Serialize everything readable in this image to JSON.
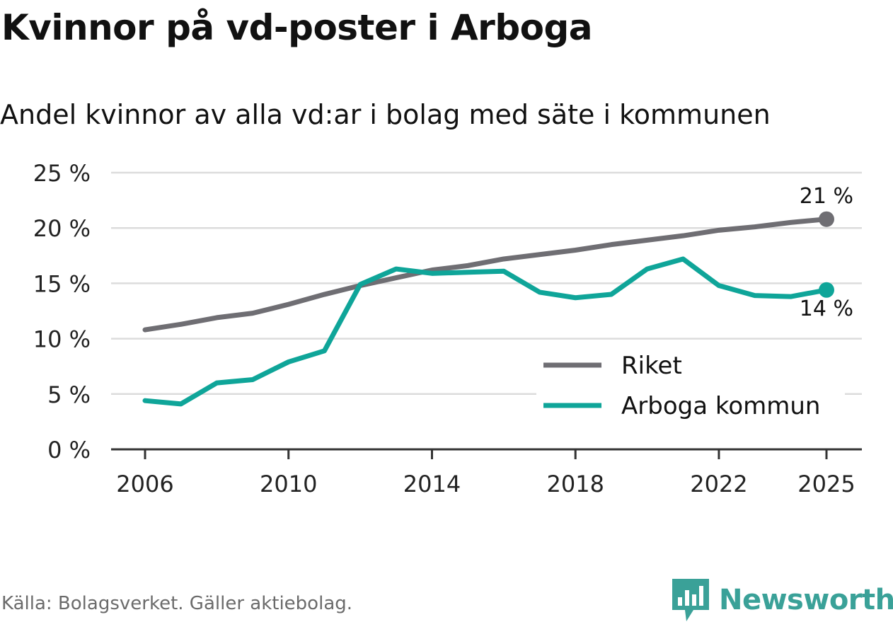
{
  "title": "Kvinnor på vd-poster i Arboga",
  "subtitle": "Andel kvinnor av alla vd:ar i bolag med säte i kommunen",
  "source": "Källa: Bolagsverket. Gäller aktiebolag.",
  "brand": {
    "name": "Newsworthy",
    "icon": "newsworthy-logo-icon",
    "color": "#3aa198"
  },
  "chart_data": {
    "type": "line",
    "title": "Kvinnor på vd-poster i Arboga",
    "subtitle": "Andel kvinnor av alla vd:ar i bolag med säte i kommunen",
    "xlabel": "",
    "ylabel": "",
    "x": [
      2006,
      2007,
      2008,
      2009,
      2010,
      2011,
      2012,
      2013,
      2014,
      2015,
      2016,
      2017,
      2018,
      2019,
      2020,
      2021,
      2022,
      2023,
      2024,
      2025
    ],
    "x_ticks": [
      2006,
      2010,
      2014,
      2018,
      2022,
      2025
    ],
    "x_tick_labels": [
      "2006",
      "2010",
      "2014",
      "2018",
      "2022",
      "2025"
    ],
    "xlim": [
      2006,
      2025
    ],
    "ylim": [
      0,
      25
    ],
    "y_ticks": [
      0,
      5,
      10,
      15,
      20,
      25
    ],
    "y_tick_labels": [
      "0 %",
      "5 %",
      "10 %",
      "15 %",
      "20 %",
      "25 %"
    ],
    "grid": true,
    "legend_position": "bottom-right",
    "series": [
      {
        "name": "Riket",
        "color": "#6f6e73",
        "values": [
          10.8,
          11.3,
          11.9,
          12.3,
          13.1,
          14.0,
          14.8,
          15.5,
          16.2,
          16.6,
          17.2,
          17.6,
          18.0,
          18.5,
          18.9,
          19.3,
          19.8,
          20.1,
          20.5,
          20.8
        ],
        "end_label": "21 %"
      },
      {
        "name": "Arboga kommun",
        "color": "#0fa599",
        "values": [
          4.4,
          4.1,
          6.0,
          6.3,
          7.9,
          8.9,
          14.9,
          16.3,
          15.9,
          16.0,
          16.1,
          14.2,
          13.7,
          14.0,
          16.3,
          17.2,
          14.8,
          13.9,
          13.8,
          14.4
        ],
        "end_label": "14 %"
      }
    ]
  }
}
